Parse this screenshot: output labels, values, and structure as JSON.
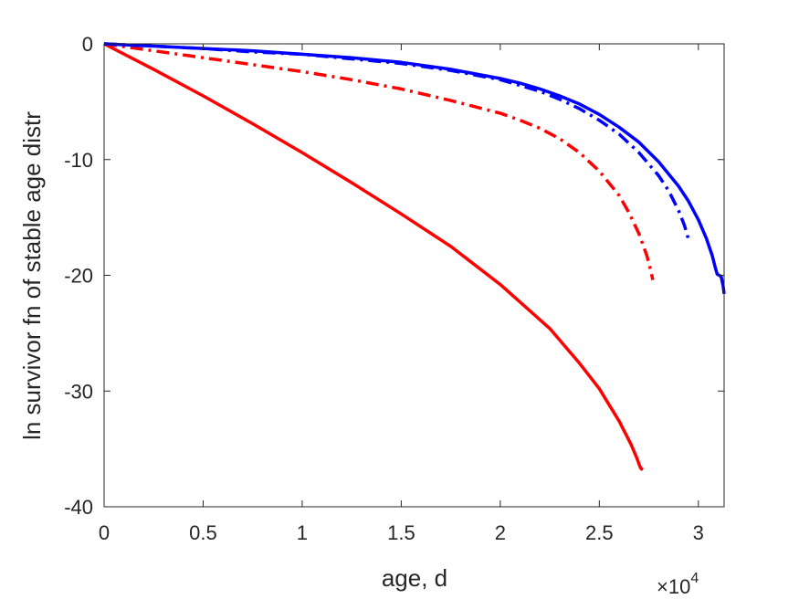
{
  "chart_data": {
    "type": "line",
    "title": "",
    "xlabel": "age, d",
    "ylabel": "ln survivor fn of stable age distr",
    "x_multiplier_label": "×10",
    "x_multiplier_exponent": "4",
    "xlim": [
      0,
      31300
    ],
    "ylim": [
      -40,
      0
    ],
    "xticks": [
      0,
      5000,
      10000,
      15000,
      20000,
      25000,
      30000
    ],
    "xtick_labels": [
      "0",
      "0.5",
      "1",
      "1.5",
      "2",
      "2.5",
      "3"
    ],
    "yticks": [
      0,
      -10,
      -20,
      -30,
      -40
    ],
    "ytick_labels": [
      "0",
      "-10",
      "-20",
      "-30",
      "-40"
    ],
    "grid": false,
    "legend": "none",
    "series": [
      {
        "color": "#ff0000",
        "style": "solid",
        "x": [
          0,
          2500,
          5000,
          7500,
          10000,
          12500,
          15000,
          17500,
          20000,
          22500,
          24000,
          25000,
          26000,
          26600,
          26900,
          27000,
          27100,
          27200
        ],
        "y": [
          0,
          -2.2,
          -4.5,
          -6.9,
          -9.4,
          -12.0,
          -14.7,
          -17.5,
          -20.8,
          -24.6,
          -27.6,
          -29.8,
          -32.6,
          -34.6,
          -35.8,
          -36.3,
          -36.7,
          -36.8
        ]
      },
      {
        "color": "#ff0000",
        "style": "dashdot",
        "x": [
          0,
          2500,
          5000,
          7500,
          10000,
          12500,
          15000,
          17500,
          20000,
          21000,
          22000,
          23000,
          24000,
          25000,
          26000,
          26500,
          27000,
          27400,
          27600,
          27700
        ],
        "y": [
          0,
          -0.6,
          -1.2,
          -1.8,
          -2.4,
          -3.1,
          -3.9,
          -4.9,
          -6.0,
          -6.6,
          -7.3,
          -8.2,
          -9.4,
          -11.0,
          -13.1,
          -14.6,
          -16.4,
          -18.3,
          -19.6,
          -20.4
        ]
      },
      {
        "color": "#0000ff",
        "style": "dashdot",
        "x": [
          0,
          2500,
          5000,
          7500,
          10000,
          12500,
          15000,
          17500,
          20000,
          21000,
          22000,
          23000,
          24000,
          25000,
          26000,
          27000,
          28000,
          28500,
          29000,
          29300,
          29500
        ],
        "y": [
          0,
          -0.2,
          -0.4,
          -0.7,
          -0.9,
          -1.3,
          -1.7,
          -2.3,
          -3.1,
          -3.6,
          -4.1,
          -4.8,
          -5.6,
          -6.6,
          -7.8,
          -9.4,
          -11.4,
          -12.7,
          -14.4,
          -15.7,
          -16.9
        ]
      },
      {
        "color": "#0000ff",
        "style": "solid",
        "x": [
          0,
          2500,
          5000,
          7500,
          10000,
          12500,
          15000,
          17500,
          20000,
          21000,
          22000,
          23000,
          24000,
          25000,
          26000,
          27000,
          28000,
          29000,
          29500,
          30000,
          30400,
          30700,
          30850,
          30950,
          31050,
          31150,
          31250,
          31300
        ],
        "y": [
          0,
          -0.2,
          -0.4,
          -0.6,
          -0.9,
          -1.2,
          -1.6,
          -2.2,
          -3.0,
          -3.4,
          -3.9,
          -4.5,
          -5.2,
          -6.1,
          -7.2,
          -8.5,
          -10.2,
          -12.3,
          -13.6,
          -15.2,
          -16.8,
          -18.3,
          -19.3,
          -19.9,
          -20.0,
          -20.1,
          -20.9,
          -21.6
        ]
      }
    ]
  }
}
